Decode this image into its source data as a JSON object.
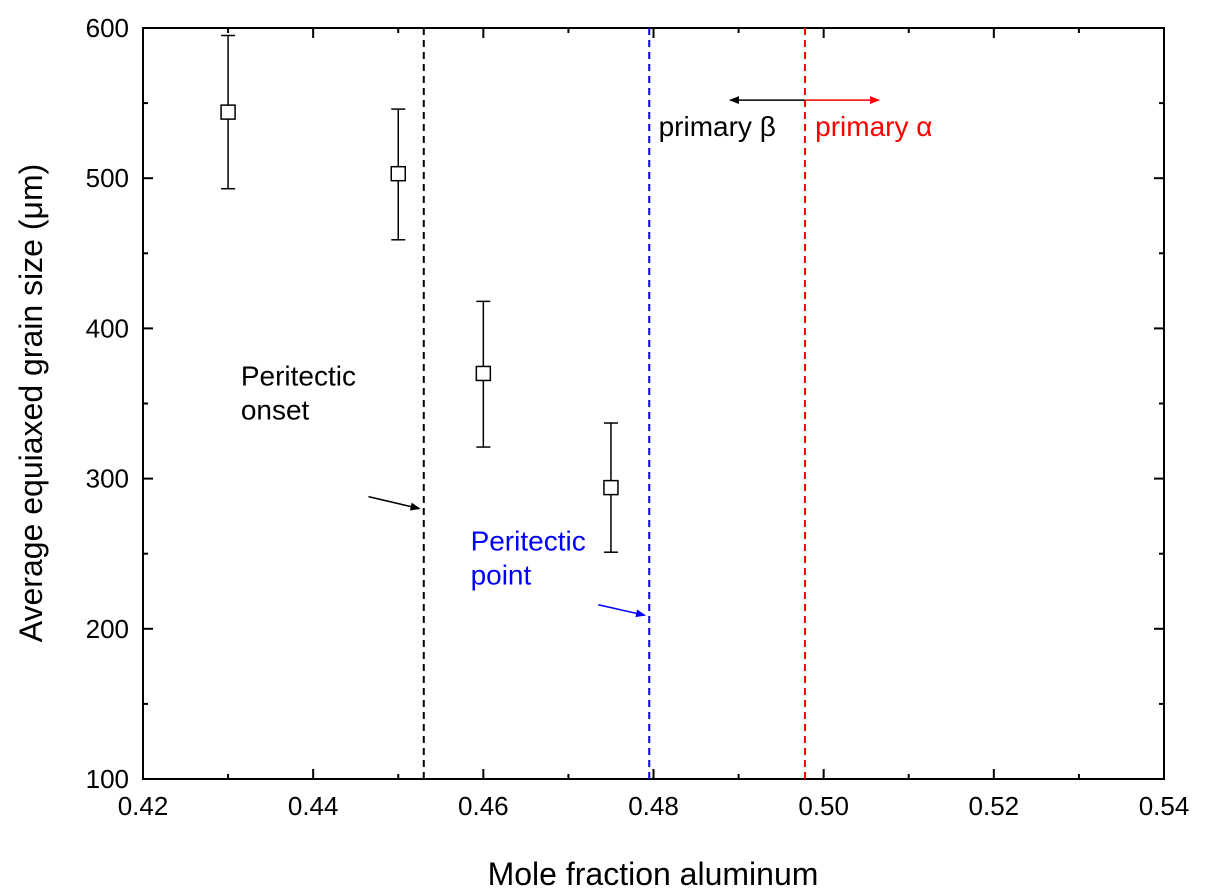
{
  "chart_data": {
    "type": "scatter",
    "xlabel": "Mole fraction aluminum",
    "ylabel": "Average equiaxed grain size (μm)",
    "xlim": [
      0.42,
      0.54
    ],
    "ylim": [
      100,
      600
    ],
    "xticks": [
      0.42,
      0.44,
      0.46,
      0.48,
      0.5,
      0.52,
      0.54
    ],
    "xtick_labels": [
      "0.42",
      "0.44",
      "0.46",
      "0.48",
      "0.50",
      "0.52",
      "0.54"
    ],
    "yticks": [
      100,
      200,
      300,
      400,
      500,
      600
    ],
    "ytick_labels": [
      "100",
      "200",
      "300",
      "400",
      "500",
      "600"
    ],
    "grid": false,
    "series": [
      {
        "marker": "open-square",
        "color": "#000000",
        "points": [
          {
            "x": 0.43,
            "y": 544,
            "err_low": 493,
            "err_high": 595
          },
          {
            "x": 0.45,
            "y": 503,
            "err_low": 459,
            "err_high": 546
          },
          {
            "x": 0.46,
            "y": 370,
            "err_low": 321,
            "err_high": 418
          },
          {
            "x": 0.475,
            "y": 294,
            "err_low": 251,
            "err_high": 337
          }
        ]
      }
    ],
    "vlines": [
      {
        "x": 0.453,
        "color": "#000000",
        "style": "dashed"
      },
      {
        "x": 0.4795,
        "color": "#0000ff",
        "style": "dashed"
      },
      {
        "x": 0.4978,
        "color": "#ff0000",
        "style": "dashed"
      }
    ],
    "annotations": [
      {
        "id": "onset",
        "lines": [
          "Peritectic",
          "onset"
        ],
        "color": "#000000",
        "text_x": 0.4315,
        "text_y": 362,
        "arrow_from": [
          0.4465,
          288
        ],
        "arrow_to": [
          0.4525,
          280
        ]
      },
      {
        "id": "point",
        "lines": [
          "Peritectic",
          "point"
        ],
        "color": "#0000ff",
        "text_x": 0.4585,
        "text_y": 252,
        "arrow_from": [
          0.4735,
          216
        ],
        "arrow_to": [
          0.479,
          209
        ]
      },
      {
        "id": "beta",
        "lines": [
          "primary β"
        ],
        "color": "#000000",
        "text_x": 0.4806,
        "text_y": 528,
        "arrow_from": [
          0.4978,
          552
        ],
        "arrow_to": [
          0.489,
          552
        ]
      },
      {
        "id": "alpha",
        "lines": [
          "primary α"
        ],
        "color": "#ff0000",
        "text_x": 0.499,
        "text_y": 528,
        "arrow_from": [
          0.4978,
          552
        ],
        "arrow_to": [
          0.5065,
          552
        ]
      }
    ]
  }
}
